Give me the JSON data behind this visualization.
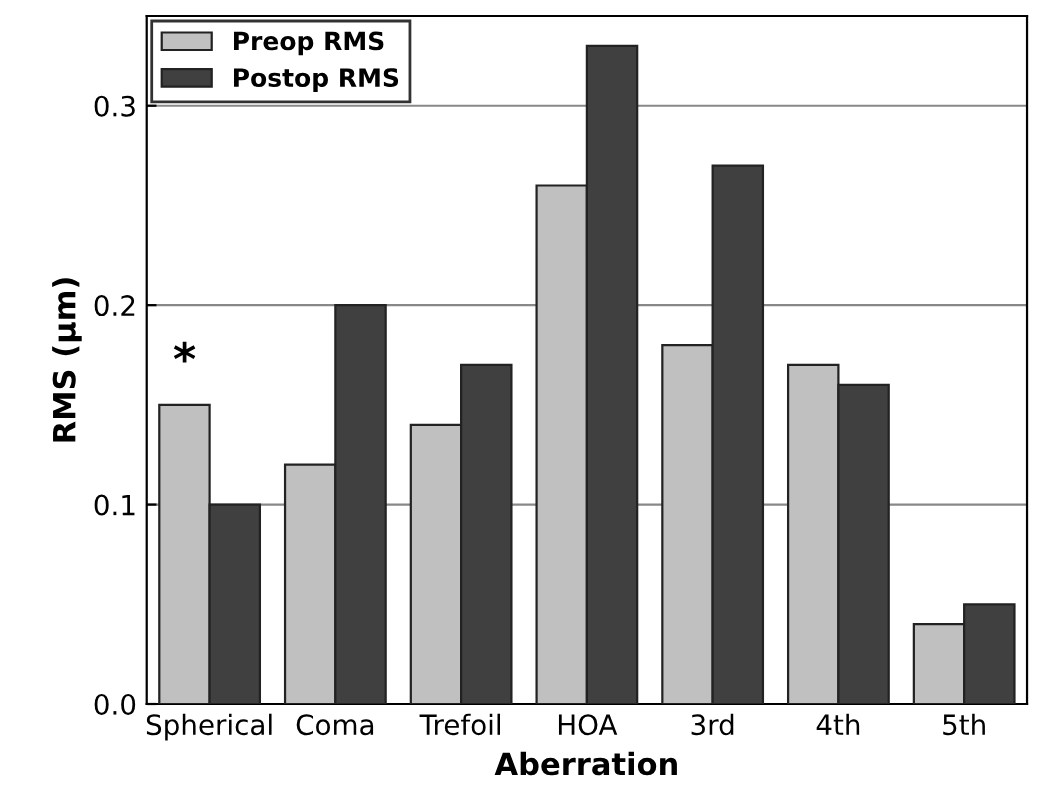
{
  "chart_data": {
    "type": "bar",
    "xlabel": "Aberration",
    "ylabel": "RMS (µm)",
    "categories": [
      "Spherical",
      "Coma",
      "Trefoil",
      "HOA",
      "3rd",
      "4th",
      "5th"
    ],
    "series": [
      {
        "name": "Preop RMS",
        "color": "#c0c0c0",
        "values": [
          0.15,
          0.12,
          0.14,
          0.26,
          0.18,
          0.17,
          0.04
        ]
      },
      {
        "name": "Postop RMS",
        "color": "#404040",
        "values": [
          0.1,
          0.2,
          0.17,
          0.33,
          0.27,
          0.16,
          0.05
        ]
      }
    ],
    "ylim": [
      0,
      0.345
    ],
    "yticks": [
      {
        "value": 0,
        "label": "0.0"
      },
      0.1,
      0.2,
      0.3
    ],
    "grid": "y",
    "legend": "top left",
    "annotations": [
      "*"
    ]
  }
}
